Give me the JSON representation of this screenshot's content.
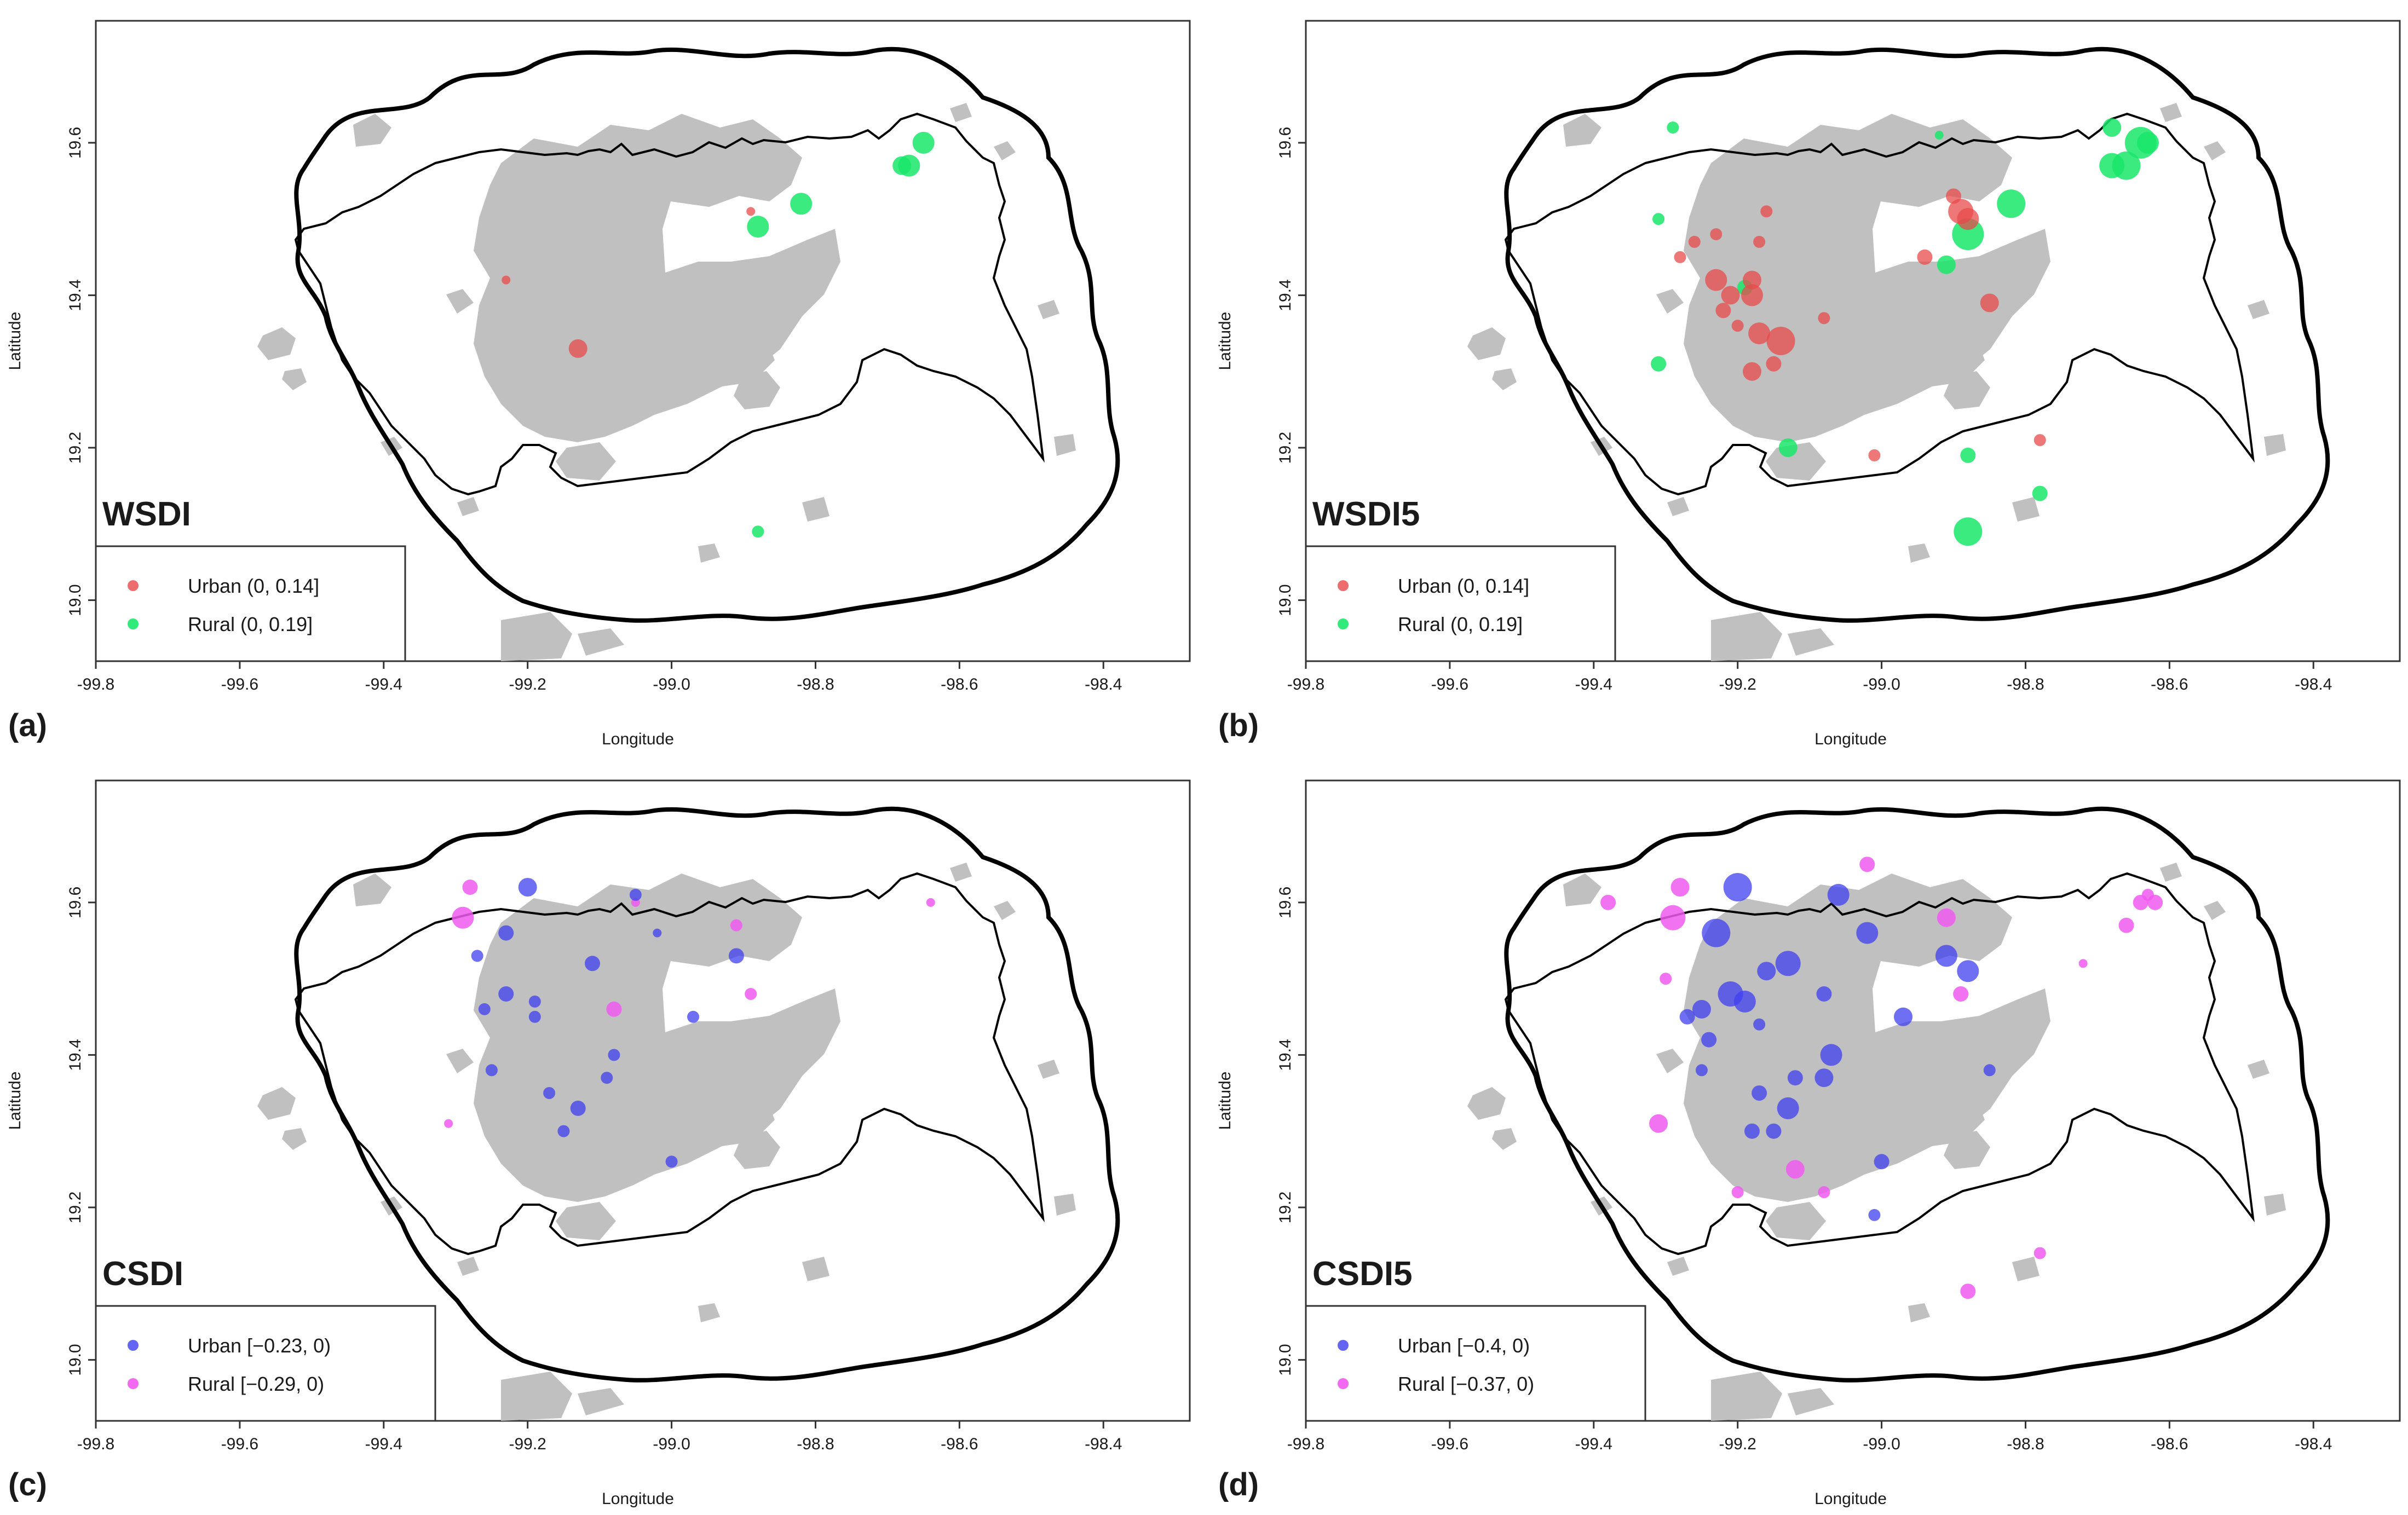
{
  "figure": {
    "x_axis_label": "Longitude",
    "y_axis_label": "Latitude",
    "x_ticks": [
      "-99.8",
      "-99.6",
      "-99.4",
      "-99.2",
      "-99.0",
      "-98.8",
      "-98.6",
      "-98.4"
    ],
    "y_ticks": [
      "19.0",
      "19.2",
      "19.4",
      "19.6"
    ],
    "colors": {
      "urban_lights": "#e8494b",
      "rural_lights": "#19e86a",
      "urban_colds": "#3f3ff0",
      "rural_colds": "#f05af0",
      "urban_area": "#c0c0c0",
      "boundary": "#000000"
    }
  },
  "panels": [
    {
      "letter": "(a)",
      "index_name": "WSDI",
      "legend": {
        "urban": "Urban (0, 0.14]",
        "rural": "Rural (0, 0.19]"
      },
      "urban_points": [
        [
          -99.23,
          19.42,
          1
        ],
        [
          -99.13,
          19.33,
          4
        ],
        [
          -98.89,
          19.51,
          1
        ]
      ],
      "rural_points": [
        [
          -98.88,
          19.49,
          5
        ],
        [
          -98.82,
          19.52,
          5
        ],
        [
          -98.67,
          19.57,
          5
        ],
        [
          -98.65,
          19.6,
          5
        ],
        [
          -98.68,
          19.57,
          4
        ],
        [
          -98.88,
          19.09,
          2
        ]
      ]
    },
    {
      "letter": "(b)",
      "index_name": "WSDI5",
      "legend": {
        "urban": "Urban (0, 0.14]",
        "rural": "Rural (0, 0.19]"
      },
      "urban_points": [
        [
          -99.23,
          19.42,
          5
        ],
        [
          -99.21,
          19.4,
          4
        ],
        [
          -99.18,
          19.42,
          4
        ],
        [
          -99.17,
          19.47,
          2
        ],
        [
          -99.22,
          19.38,
          3
        ],
        [
          -99.18,
          19.4,
          5
        ],
        [
          -99.17,
          19.35,
          5
        ],
        [
          -99.14,
          19.34,
          7
        ],
        [
          -99.18,
          19.3,
          4
        ],
        [
          -99.15,
          19.31,
          3
        ],
        [
          -99.26,
          19.47,
          2
        ],
        [
          -99.28,
          19.45,
          2
        ],
        [
          -99.2,
          19.36,
          2
        ],
        [
          -99.16,
          19.51,
          2
        ],
        [
          -99.08,
          19.37,
          2
        ],
        [
          -99.01,
          19.19,
          2
        ],
        [
          -98.89,
          19.51,
          6
        ],
        [
          -98.9,
          19.53,
          3
        ],
        [
          -98.88,
          19.5,
          5
        ],
        [
          -98.94,
          19.45,
          3
        ],
        [
          -98.85,
          19.39,
          4
        ],
        [
          -98.78,
          19.21,
          2
        ],
        [
          -99.23,
          19.48,
          2
        ]
      ],
      "rural_points": [
        [
          -99.29,
          19.62,
          2
        ],
        [
          -99.31,
          19.5,
          2
        ],
        [
          -99.19,
          19.41,
          3
        ],
        [
          -99.31,
          19.31,
          3
        ],
        [
          -99.13,
          19.2,
          4
        ],
        [
          -98.88,
          19.48,
          8
        ],
        [
          -98.91,
          19.44,
          4
        ],
        [
          -98.82,
          19.52,
          7
        ],
        [
          -98.88,
          19.19,
          3
        ],
        [
          -98.78,
          19.14,
          3
        ],
        [
          -98.88,
          19.09,
          7
        ],
        [
          -98.66,
          19.57,
          7
        ],
        [
          -98.68,
          19.57,
          6
        ],
        [
          -98.64,
          19.6,
          8
        ],
        [
          -98.68,
          19.62,
          4
        ],
        [
          -98.63,
          19.6,
          5
        ],
        [
          -98.92,
          19.61,
          1
        ]
      ]
    },
    {
      "letter": "(c)",
      "index_name": "CSDI",
      "legend": {
        "urban": "Urban [−0.23, 0)",
        "rural": "Rural [−0.29, 0)"
      },
      "urban_points": [
        [
          -99.2,
          19.62,
          4
        ],
        [
          -99.05,
          19.61,
          2
        ],
        [
          -99.23,
          19.56,
          3
        ],
        [
          -99.27,
          19.53,
          2
        ],
        [
          -99.11,
          19.52,
          3
        ],
        [
          -99.02,
          19.56,
          1
        ],
        [
          -99.23,
          19.48,
          3
        ],
        [
          -99.26,
          19.46,
          2
        ],
        [
          -99.19,
          19.47,
          2
        ],
        [
          -99.19,
          19.45,
          2
        ],
        [
          -99.08,
          19.4,
          2
        ],
        [
          -99.25,
          19.38,
          2
        ],
        [
          -99.13,
          19.33,
          3
        ],
        [
          -99.09,
          19.37,
          2
        ],
        [
          -99.17,
          19.35,
          2
        ],
        [
          -99.15,
          19.3,
          2
        ],
        [
          -98.97,
          19.45,
          2
        ],
        [
          -98.91,
          19.53,
          3
        ],
        [
          -99.0,
          19.26,
          2
        ]
      ],
      "rural_points": [
        [
          -99.29,
          19.58,
          5
        ],
        [
          -99.28,
          19.62,
          3
        ],
        [
          -99.08,
          19.46,
          3
        ],
        [
          -98.91,
          19.57,
          2
        ],
        [
          -98.89,
          19.48,
          2
        ],
        [
          -98.64,
          19.6,
          1
        ],
        [
          -99.31,
          19.31,
          1
        ],
        [
          -99.05,
          19.6,
          1
        ]
      ]
    },
    {
      "letter": "(d)",
      "index_name": "CSDI5",
      "legend": {
        "urban": "Urban [−0.4, 0)",
        "rural": "Rural [−0.37, 0)"
      },
      "urban_points": [
        [
          -99.2,
          19.62,
          7
        ],
        [
          -99.23,
          19.56,
          7
        ],
        [
          -99.21,
          19.48,
          6
        ],
        [
          -99.19,
          19.47,
          5
        ],
        [
          -99.25,
          19.46,
          4
        ],
        [
          -99.27,
          19.45,
          3
        ],
        [
          -99.13,
          19.52,
          6
        ],
        [
          -99.16,
          19.51,
          4
        ],
        [
          -99.06,
          19.61,
          5
        ],
        [
          -99.02,
          19.56,
          5
        ],
        [
          -99.08,
          19.48,
          3
        ],
        [
          -99.24,
          19.42,
          3
        ],
        [
          -99.17,
          19.44,
          2
        ],
        [
          -99.07,
          19.4,
          5
        ],
        [
          -99.08,
          19.37,
          4
        ],
        [
          -99.12,
          19.37,
          3
        ],
        [
          -99.13,
          19.33,
          5
        ],
        [
          -99.17,
          19.35,
          3
        ],
        [
          -99.15,
          19.3,
          3
        ],
        [
          -99.18,
          19.3,
          3
        ],
        [
          -99.25,
          19.38,
          2
        ],
        [
          -98.97,
          19.45,
          4
        ],
        [
          -98.91,
          19.53,
          5
        ],
        [
          -98.88,
          19.51,
          5
        ],
        [
          -98.85,
          19.38,
          2
        ],
        [
          -99.0,
          19.26,
          3
        ],
        [
          -99.01,
          19.19,
          2
        ]
      ],
      "rural_points": [
        [
          -99.28,
          19.62,
          4
        ],
        [
          -99.29,
          19.58,
          6
        ],
        [
          -99.3,
          19.5,
          2
        ],
        [
          -99.31,
          19.31,
          4
        ],
        [
          -99.12,
          19.25,
          4
        ],
        [
          -99.08,
          19.22,
          2
        ],
        [
          -99.2,
          19.22,
          2
        ],
        [
          -98.91,
          19.58,
          4
        ],
        [
          -98.89,
          19.48,
          3
        ],
        [
          -98.88,
          19.09,
          3
        ],
        [
          -98.78,
          19.14,
          2
        ],
        [
          -98.66,
          19.57,
          3
        ],
        [
          -98.64,
          19.6,
          3
        ],
        [
          -98.63,
          19.61,
          2
        ],
        [
          -98.62,
          19.6,
          3
        ],
        [
          -99.02,
          19.65,
          3
        ],
        [
          -98.72,
          19.52,
          1
        ],
        [
          -99.38,
          19.6,
          3
        ]
      ]
    }
  ]
}
